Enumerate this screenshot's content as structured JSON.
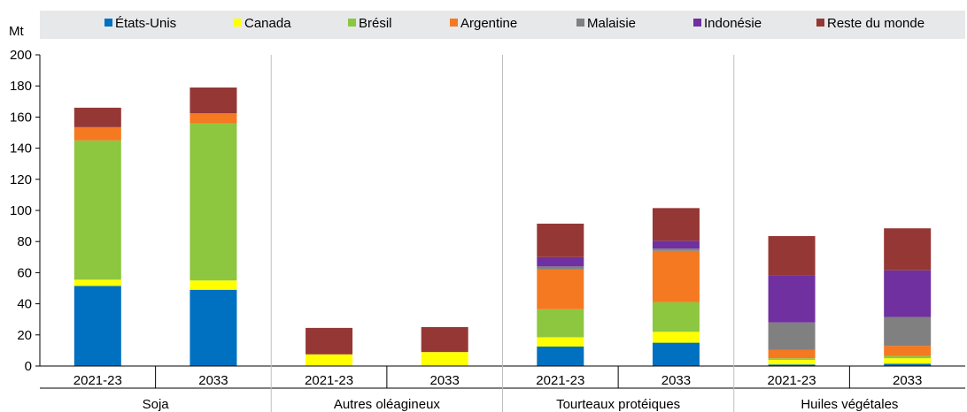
{
  "chart_data": {
    "type": "bar",
    "stacked": true,
    "ylabel": "Mt",
    "ylim": [
      0,
      200
    ],
    "yticks": [
      0,
      20,
      40,
      60,
      80,
      100,
      120,
      140,
      160,
      180,
      200
    ],
    "groups": [
      {
        "label": "Soja",
        "categories": [
          "2021-23",
          "2033"
        ]
      },
      {
        "label": "Autres oléagineux",
        "categories": [
          "2021-23",
          "2033"
        ]
      },
      {
        "label": "Tourteaux protéiques",
        "categories": [
          "2021-23",
          "2033"
        ]
      },
      {
        "label": "Huiles végétales",
        "categories": [
          "2021-23",
          "2033"
        ]
      }
    ],
    "series": [
      {
        "name": "États-Unis",
        "color": "#0070c0",
        "values": [
          51.5,
          49,
          0,
          0,
          12.5,
          15,
          1,
          1.5
        ]
      },
      {
        "name": "Canada",
        "color": "#ffff00",
        "values": [
          4,
          6,
          7.5,
          9,
          6,
          7,
          3,
          3.5
        ]
      },
      {
        "name": "Brésil",
        "color": "#8dc63f",
        "values": [
          89.5,
          101,
          0,
          0,
          18,
          19,
          1,
          1.5
        ]
      },
      {
        "name": "Argentine",
        "color": "#f47920",
        "values": [
          8.5,
          6.5,
          0,
          0,
          25.5,
          33,
          5.5,
          6.5
        ]
      },
      {
        "name": "Malaisie",
        "color": "#808080",
        "values": [
          0,
          0,
          0,
          0,
          2,
          1.5,
          17.5,
          18.5
        ]
      },
      {
        "name": "Indonésie",
        "color": "#7030a0",
        "values": [
          0,
          0,
          0,
          0,
          6,
          5,
          30,
          30
        ]
      },
      {
        "name": "Reste du monde",
        "color": "#953735",
        "values": [
          12.5,
          16.5,
          17,
          16,
          21.5,
          21,
          25.5,
          27
        ]
      }
    ],
    "legend_position": "top",
    "grid": false
  }
}
